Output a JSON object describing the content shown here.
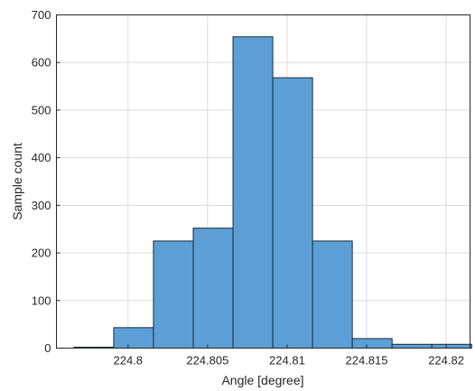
{
  "chart_data": {
    "type": "bar",
    "xlabel": "Angle [degree]",
    "ylabel": "Sample count",
    "xlim": [
      224.7955,
      224.8215
    ],
    "ylim": [
      0,
      700
    ],
    "grid": true,
    "x_ticks": [
      224.8,
      224.805,
      224.81,
      224.815,
      224.82
    ],
    "x_tick_labels": [
      "224.8",
      "224.805",
      "224.81",
      "224.815",
      "224.82"
    ],
    "y_ticks": [
      0,
      100,
      200,
      300,
      400,
      500,
      600,
      700
    ],
    "y_tick_labels": [
      "0",
      "100",
      "200",
      "300",
      "400",
      "500",
      "600",
      "700"
    ],
    "bin_edges": [
      224.7966,
      224.7991,
      224.8016,
      224.8041,
      224.8066,
      224.8091,
      224.8116,
      224.8141,
      224.8166,
      224.8191,
      224.8216
    ],
    "values": [
      2,
      43,
      225,
      252,
      654,
      568,
      225,
      20,
      8,
      8
    ],
    "colors": {
      "bar_fill": "#5b9fd6",
      "bar_edge": "#1f2a33",
      "grid": "#dcdcdc"
    }
  }
}
